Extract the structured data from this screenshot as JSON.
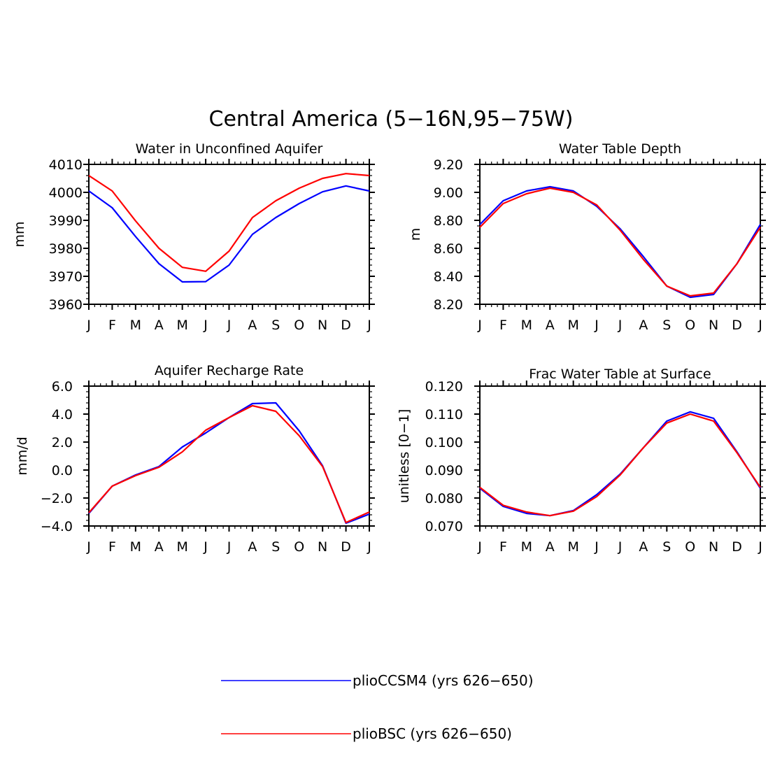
{
  "figure": {
    "title": "Central America (5−16N,95−75W)"
  },
  "colors": {
    "plioCCSM4": "#0000ff",
    "plioBSC": "#ff0000",
    "axis": "#000000"
  },
  "legend": {
    "placement": "bottom-center",
    "entries": [
      {
        "label": "plioCCSM4 (yrs 626−650)",
        "series": "plioCCSM4"
      },
      {
        "label": "plioBSC (yrs 626−650)",
        "series": "plioBSC"
      }
    ]
  },
  "chart_data": [
    {
      "type": "line",
      "title": "Water in Unconfined Aquifer",
      "ylabel": "mm",
      "xlabel": "",
      "categories": [
        "J",
        "F",
        "M",
        "A",
        "M",
        "J",
        "J",
        "A",
        "S",
        "O",
        "N",
        "D",
        "J"
      ],
      "ylim": [
        3960,
        4010
      ],
      "yticks": [
        "3960",
        "3970",
        "3980",
        "3990",
        "4000",
        "4010"
      ],
      "ytick_values": [
        3960,
        3970,
        3980,
        3990,
        4000,
        4010
      ],
      "grid": false,
      "series": [
        {
          "key": "plioCCSM4",
          "values": [
            4000.5,
            3994.5,
            3984.2,
            3974.5,
            3968.0,
            3968.1,
            3974.0,
            3985.0,
            3991.0,
            3996.0,
            4000.2,
            4002.3,
            4000.5
          ]
        },
        {
          "key": "plioBSC",
          "values": [
            4006.0,
            4000.5,
            3989.8,
            3980.0,
            3973.2,
            3971.8,
            3979.0,
            3991.0,
            3997.0,
            4001.5,
            4005.0,
            4006.7,
            4006.0
          ]
        }
      ]
    },
    {
      "type": "line",
      "title": "Water Table Depth",
      "ylabel": "m",
      "xlabel": "",
      "categories": [
        "J",
        "F",
        "M",
        "A",
        "M",
        "J",
        "J",
        "A",
        "S",
        "O",
        "N",
        "D",
        "J"
      ],
      "ylim": [
        8.2,
        9.2
      ],
      "yticks": [
        "8.20",
        "8.40",
        "8.60",
        "8.80",
        "9.00",
        "9.20"
      ],
      "ytick_values": [
        8.2,
        8.4,
        8.6,
        8.8,
        9.0,
        9.2
      ],
      "grid": false,
      "series": [
        {
          "key": "plioCCSM4",
          "values": [
            8.77,
            8.94,
            9.01,
            9.04,
            9.01,
            8.9,
            8.74,
            8.54,
            8.33,
            8.25,
            8.27,
            8.49,
            8.77
          ]
        },
        {
          "key": "plioBSC",
          "values": [
            8.75,
            8.92,
            8.99,
            9.03,
            9.0,
            8.91,
            8.73,
            8.52,
            8.33,
            8.26,
            8.28,
            8.49,
            8.75
          ]
        }
      ]
    },
    {
      "type": "line",
      "title": "Aquifer Recharge Rate",
      "ylabel": "mm/d",
      "xlabel": "",
      "categories": [
        "J",
        "F",
        "M",
        "A",
        "M",
        "J",
        "J",
        "A",
        "S",
        "O",
        "N",
        "D",
        "J"
      ],
      "ylim": [
        -4.0,
        6.0
      ],
      "yticks": [
        "−4.0",
        "−2.0",
        "0.0",
        "2.0",
        "4.0",
        "6.0"
      ],
      "ytick_values": [
        -4,
        -2,
        0,
        2,
        4,
        6
      ],
      "grid": false,
      "series": [
        {
          "key": "plioCCSM4",
          "values": [
            -3.1,
            -1.15,
            -0.35,
            0.25,
            1.65,
            2.65,
            3.75,
            4.75,
            4.8,
            2.8,
            0.3,
            -3.8,
            -3.15
          ]
        },
        {
          "key": "plioBSC",
          "values": [
            -3.05,
            -1.15,
            -0.4,
            0.2,
            1.3,
            2.85,
            3.75,
            4.6,
            4.2,
            2.45,
            0.25,
            -3.75,
            -3.0
          ]
        }
      ]
    },
    {
      "type": "line",
      "title": "Frac Water Table at Surface",
      "ylabel": "unitless [0−1]",
      "xlabel": "",
      "categories": [
        "J",
        "F",
        "M",
        "A",
        "M",
        "J",
        "J",
        "A",
        "S",
        "O",
        "N",
        "D",
        "J"
      ],
      "ylim": [
        0.07,
        0.12
      ],
      "yticks": [
        "0.070",
        "0.080",
        "0.090",
        "0.100",
        "0.110",
        "0.120"
      ],
      "ytick_values": [
        0.07,
        0.08,
        0.09,
        0.1,
        0.11,
        0.12
      ],
      "grid": false,
      "series": [
        {
          "key": "plioCCSM4",
          "values": [
            0.0835,
            0.077,
            0.0745,
            0.0737,
            0.0755,
            0.0812,
            0.0885,
            0.098,
            0.1075,
            0.1108,
            0.1085,
            0.0965,
            0.0835
          ]
        },
        {
          "key": "plioBSC",
          "values": [
            0.0838,
            0.0774,
            0.075,
            0.0737,
            0.0753,
            0.0805,
            0.0882,
            0.098,
            0.1068,
            0.11,
            0.1075,
            0.0962,
            0.0838
          ]
        }
      ]
    }
  ]
}
